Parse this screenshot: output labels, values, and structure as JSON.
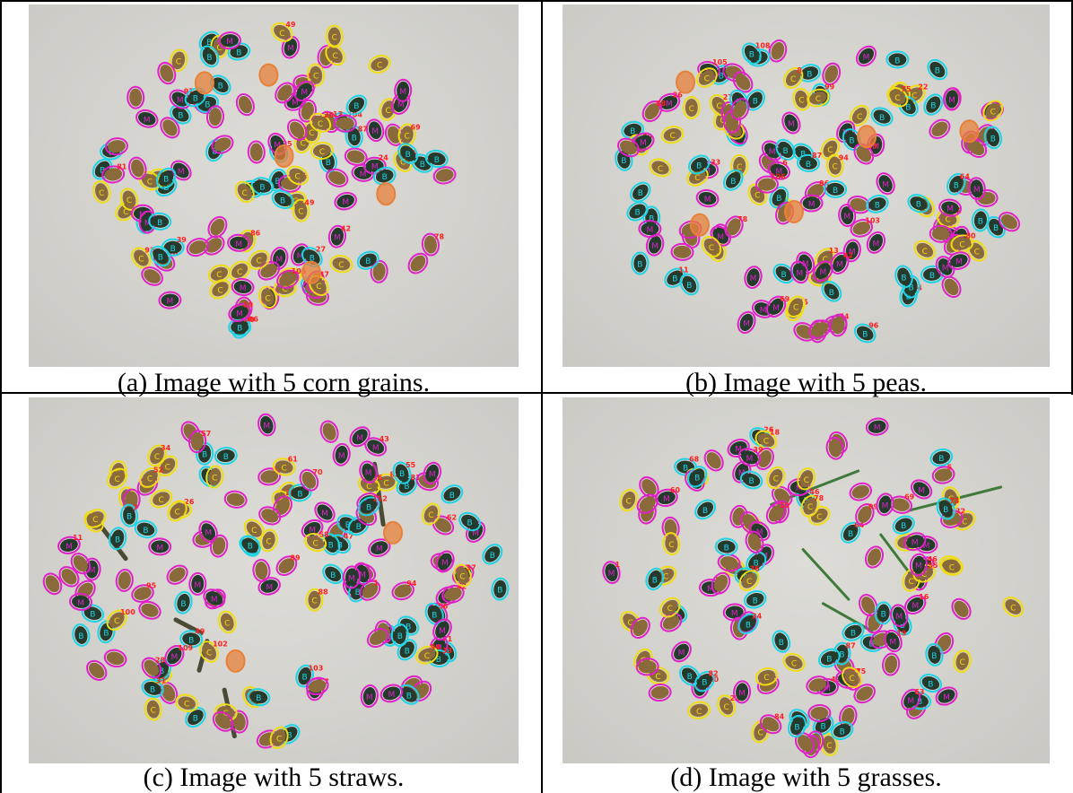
{
  "figure": {
    "panels": [
      {
        "id": "a",
        "caption": "(a) Image with 5 corn grains.",
        "impurity": "corn",
        "count_label": "5"
      },
      {
        "id": "b",
        "caption": "(b) Image with 5 peas.",
        "impurity": "pea",
        "count_label": "5"
      },
      {
        "id": "c",
        "caption": "(c) Image with 5 straws.",
        "impurity": "straw",
        "count_label": "5"
      },
      {
        "id": "d",
        "caption": "(d) Image with 5 grasses.",
        "impurity": "grass",
        "count_label": "5"
      }
    ],
    "marker_colors": {
      "cyan": "#1fd3e6",
      "magenta": "#e020c8",
      "yellow": "#f0dc10",
      "orange": "#e8803a",
      "label_red": "#ff2020",
      "grain_dark": "#243a2c",
      "grain_brown": "#8a6a3a"
    }
  }
}
